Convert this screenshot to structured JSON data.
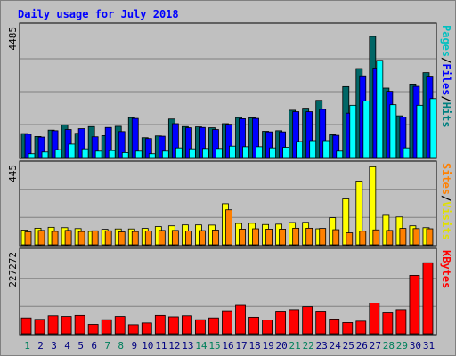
{
  "chart_data": {
    "title": "Daily usage for July 2018",
    "categories": [
      "1",
      "2",
      "3",
      "4",
      "5",
      "6",
      "7",
      "8",
      "9",
      "10",
      "11",
      "12",
      "13",
      "14",
      "15",
      "16",
      "17",
      "18",
      "19",
      "20",
      "21",
      "22",
      "23",
      "24",
      "25",
      "26",
      "27",
      "28",
      "29",
      "30",
      "31"
    ],
    "weekend_days": [
      "1",
      "7",
      "8",
      "14",
      "15",
      "21",
      "22",
      "28",
      "29"
    ],
    "panels": [
      {
        "type": "bar",
        "max_label": "4485",
        "ymax": 4485,
        "legend": [
          "Pages",
          "/",
          "Files",
          "/",
          "Hits"
        ],
        "series": [
          {
            "name": "Hits",
            "color": "#006666",
            "values": [
              820,
              720,
              940,
              1120,
              830,
              1060,
              750,
              1070,
              1370,
              680,
              740,
              1320,
              1060,
              1050,
              1020,
              1160,
              1370,
              1360,
              900,
              920,
              1620,
              1690,
              1960,
              780,
              2430,
              3050,
              4150,
              2380,
              1430,
              2520,
              2910
            ]
          },
          {
            "name": "Files",
            "color": "#0000ff",
            "values": [
              800,
              700,
              920,
              960,
              990,
              710,
              1030,
              890,
              1340,
              650,
              730,
              1160,
              1020,
              1030,
              960,
              1140,
              1330,
              1340,
              880,
              880,
              1570,
              1570,
              1650,
              760,
              1520,
              2800,
              3070,
              2270,
              1390,
              2440,
              2790
            ]
          },
          {
            "name": "Pages",
            "color": "#00ffff",
            "values": [
              130,
              190,
              270,
              460,
              300,
              220,
              240,
              170,
              220,
              130,
              220,
              330,
              300,
              310,
              310,
              390,
              370,
              370,
              330,
              350,
              550,
              580,
              580,
              220,
              1790,
              1940,
              3330,
              1810,
              330,
              1790,
              2020
            ]
          }
        ]
      },
      {
        "type": "bar",
        "max_label": "445",
        "ymax": 445,
        "legend": [
          "Sites",
          "/",
          "Visits"
        ],
        "series": [
          {
            "name": "Visits",
            "color": "#ffff00",
            "values": [
              80,
              90,
              95,
              93,
              88,
              73,
              84,
              86,
              86,
              89,
              99,
              103,
              108,
              108,
              107,
              223,
              116,
              117,
              110,
              112,
              121,
              122,
              87,
              147,
              249,
              346,
              424,
              160,
              151,
              103,
              93
            ]
          },
          {
            "name": "Sites",
            "color": "#ff8000",
            "values": [
              70,
              78,
              73,
              78,
              72,
              76,
              76,
              70,
              72,
              75,
              78,
              78,
              75,
              77,
              80,
              190,
              85,
              87,
              85,
              85,
              90,
              90,
              89,
              82,
              65,
              74,
              81,
              78,
              89,
              88,
              87
            ]
          }
        ]
      },
      {
        "type": "bar",
        "max_label": "227272",
        "ymax": 227272,
        "legend": [
          "KBytes"
        ],
        "series": [
          {
            "name": "KBytes",
            "color": "#ff0000",
            "values": [
              44000,
              40000,
              50000,
              48000,
              51000,
              26000,
              39000,
              48000,
              25000,
              30000,
              51000,
              47000,
              50000,
              39000,
              44000,
              64000,
              79000,
              46000,
              38000,
              63000,
              67000,
              75000,
              63000,
              41000,
              31000,
              35000,
              85000,
              58000,
              67000,
              162000,
              197000
            ]
          }
        ]
      }
    ]
  },
  "colors": {
    "background": "#c0c0c0",
    "title": "#0000ff",
    "weekday_label": "#000080",
    "weekend_label": "#00805c",
    "slash": "#000000"
  }
}
